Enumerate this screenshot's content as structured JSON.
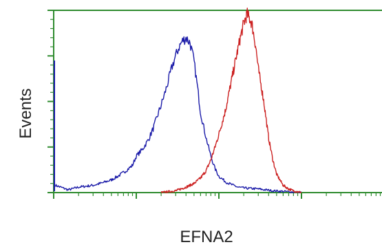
{
  "chart_data": {
    "type": "line",
    "title": "",
    "xlabel": "EFNA2",
    "ylabel": "Events",
    "x_scale": "log",
    "xlim": [
      1,
      10000
    ],
    "ylim": [
      0,
      100
    ],
    "grid": false,
    "legend": "none",
    "frame_color": "#2e8b2e",
    "series": [
      {
        "color": "#1a1aa8",
        "x": [
          1.05,
          1.5,
          2,
          3,
          4,
          5,
          6,
          7,
          8,
          9,
          10,
          12,
          14,
          16,
          18,
          20,
          22,
          24,
          26,
          28,
          30,
          33,
          36,
          40,
          45,
          50,
          55,
          60,
          70,
          80,
          90,
          100,
          120,
          140,
          170,
          200,
          300,
          450,
          1000
        ],
        "y": [
          4,
          1.5,
          3,
          4,
          5.5,
          7,
          9,
          11,
          13,
          15,
          20,
          24,
          29,
          35,
          42,
          48,
          54,
          60,
          66,
          71,
          75,
          80,
          83,
          85,
          82,
          72,
          58,
          44,
          30,
          20,
          13,
          9,
          6,
          4.5,
          3,
          2.5,
          2,
          1,
          0
        ]
      },
      {
        "color": "#cc2222",
        "x": [
          20,
          30,
          40,
          50,
          60,
          70,
          80,
          90,
          100,
          120,
          140,
          160,
          180,
          200,
          220,
          250,
          280,
          300,
          350,
          400,
          450,
          500,
          600,
          700,
          800,
          1000
        ],
        "y": [
          0,
          1,
          3,
          5,
          8,
          12,
          18,
          25,
          32,
          45,
          60,
          73,
          84,
          93,
          98,
          93,
          80,
          68,
          50,
          30,
          18,
          10,
          4,
          2,
          1,
          0
        ]
      }
    ]
  }
}
